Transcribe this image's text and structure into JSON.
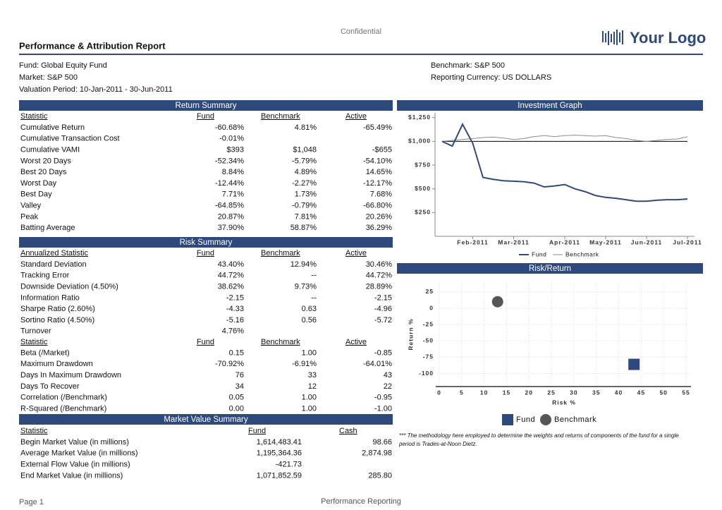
{
  "header": {
    "confidential": "Confidential",
    "title": "Performance & Attribution Report",
    "logo": "Your Logo"
  },
  "info": {
    "fund": "Fund: Global Equity Fund",
    "market": "Market: S&P 500",
    "valuation_period": "Valuation Period: 10-Jan-2011 - 30-Jun-2011",
    "benchmark": "Benchmark: S&P 500",
    "currency": "Reporting Currency: US DOLLARS"
  },
  "return_summary": {
    "title": "Return Summary",
    "columns": [
      "Statistic",
      "Fund",
      "Benchmark",
      "Active"
    ],
    "rows": [
      [
        "Cumulative Return",
        "-60.68%",
        "4.81%",
        "-65.49%"
      ],
      [
        "Cumulative Transaction Cost",
        "-0.01%",
        null,
        null
      ],
      [
        "Cumulative VAMI",
        "$393",
        "$1,048",
        "-$655"
      ],
      [
        "Worst 20 Days",
        "-52.34%",
        "-5.79%",
        "-54.10%"
      ],
      [
        "Best 20 Days",
        "8.84%",
        "4.89%",
        "14.65%"
      ],
      [
        "Worst Day",
        "-12.44%",
        "-2.27%",
        "-12.17%"
      ],
      [
        "Best Day",
        "7.71%",
        "1.73%",
        "7.68%"
      ],
      [
        "Valley",
        "-64.85%",
        "-0.79%",
        "-66.80%"
      ],
      [
        "Peak",
        "20.87%",
        "7.81%",
        "20.26%"
      ],
      [
        "Batting Average",
        "37.90%",
        "58.87%",
        "36.29%"
      ]
    ]
  },
  "risk_summary": {
    "title": "Risk Summary",
    "columns": [
      "Annualized Statistic",
      "Fund",
      "Benchmark",
      "Active"
    ],
    "rows": [
      [
        "Standard Deviation",
        "43.40%",
        "12.94%",
        "30.46%"
      ],
      [
        "Tracking Error",
        "44.72%",
        "--",
        "44.72%"
      ],
      [
        "Downside Deviation (4.50%)",
        "38.62%",
        "9.73%",
        "28.89%"
      ],
      [
        "Information Ratio",
        "-2.15",
        "--",
        "-2.15"
      ],
      [
        "Sharpe Ratio (2.60%)",
        "-4.33",
        "0.63",
        "-4.96"
      ],
      [
        "Sortino Ratio (4.50%)",
        "-5.16",
        "0.56",
        "-5.72"
      ],
      [
        "Turnover",
        "4.76%",
        null,
        null
      ]
    ],
    "columns2": [
      "Statistic",
      "Fund",
      "Benchmark",
      "Active"
    ],
    "rows2": [
      [
        "Beta (/Market)",
        "0.15",
        "1.00",
        "-0.85"
      ],
      [
        "Maximum Drawdown",
        "-70.92%",
        "-6.91%",
        "-64.01%"
      ],
      [
        "Days In Maximum Drawdown",
        "76",
        "33",
        "43"
      ],
      [
        "Days To Recover",
        "34",
        "12",
        "22"
      ],
      [
        "Correlation (/Benchmark)",
        "0.05",
        "1.00",
        "-0.95"
      ],
      [
        "R-Squared (/Benchmark)",
        "0.00",
        "1.00",
        "-1.00"
      ]
    ]
  },
  "market_value_summary": {
    "title": "Market Value Summary",
    "columns": [
      "Statistic",
      "Fund",
      "Cash"
    ],
    "rows": [
      [
        "Begin Market Value (in millions)",
        "1,614,483.41",
        "98.66"
      ],
      [
        "Average Market Value (in millions)",
        "1,195,364.36",
        "2,874.98"
      ],
      [
        "External Flow Value (in millions)",
        "-421.73",
        null
      ],
      [
        "End Market Value (in millions)",
        "1,071,852.59",
        "285.80"
      ]
    ]
  },
  "investment_graph": {
    "title": "Investment Graph",
    "chart_data": {
      "type": "line",
      "categories": [
        null,
        null,
        null,
        "Feb-2011",
        null,
        null,
        null,
        "Mar-2011",
        null,
        null,
        null,
        null,
        "Apr-2011",
        null,
        null,
        null,
        "May-2011",
        null,
        null,
        null,
        "Jun-2011",
        null,
        null,
        null,
        "Jul-2011"
      ],
      "series": [
        {
          "name": "Fund",
          "color": "#2e4a7d",
          "values": [
            1000,
            950,
            1180,
            980,
            620,
            600,
            585,
            580,
            575,
            560,
            520,
            530,
            545,
            500,
            470,
            430,
            410,
            400,
            385,
            370,
            370,
            380,
            385,
            385,
            393
          ]
        },
        {
          "name": "Benchmark",
          "color": "#8a8a8a",
          "values": [
            1000,
            1010,
            1020,
            1030,
            1040,
            1045,
            1035,
            1020,
            1030,
            1050,
            1060,
            1050,
            1060,
            1065,
            1060,
            1055,
            1060,
            1040,
            1030,
            1010,
            1000,
            1010,
            1020,
            1025,
            1048
          ]
        }
      ],
      "reference_line": 1000,
      "ylim": [
        0,
        1300
      ],
      "yticks": [
        {
          "value": 250,
          "label": "$250"
        },
        {
          "value": 500,
          "label": "$500"
        },
        {
          "value": 750,
          "label": "$750"
        },
        {
          "value": 1000,
          "label": "$1,000"
        },
        {
          "value": 1250,
          "label": "$1,250"
        }
      ]
    }
  },
  "risk_return": {
    "title": "Risk/Return",
    "chart_data": {
      "type": "scatter",
      "x_label": "Risk %",
      "y_label": "Return %",
      "grid": true,
      "series": [
        {
          "name": "Fund",
          "color": "#2e4a7d",
          "marker": "square",
          "x": [
            43.4
          ],
          "values": [
            -86
          ]
        },
        {
          "name": "Benchmark",
          "color": "#555555",
          "marker": "circle",
          "x": [
            13
          ],
          "values": [
            10
          ]
        }
      ],
      "xlim": [
        0,
        55
      ],
      "ylim": [
        -120,
        40
      ],
      "xticks": [
        0,
        5,
        10,
        15,
        20,
        25,
        30,
        35,
        40,
        45,
        50,
        55
      ],
      "yticks": [
        -100,
        -75,
        -50,
        -25,
        0,
        25
      ]
    }
  },
  "footnote": [
    "*** The methodology here employed to determine the weights and returns of components of the fund for a single",
    "period is Trades-at-Noon Dietz."
  ],
  "footer": {
    "page": "Page 1",
    "center": "Performance Reporting"
  }
}
